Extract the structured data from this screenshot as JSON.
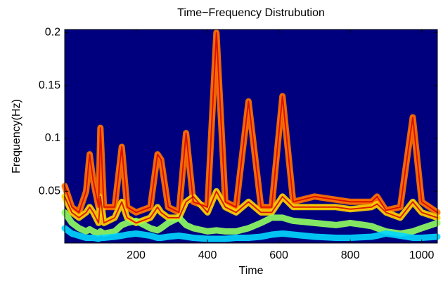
{
  "chart_data": {
    "type": "spectrogram",
    "title": "Time−Frequency Distrubution",
    "x_label": "Time",
    "y_label": "Frequency(Hz)",
    "background": "#00007f",
    "xlim": [
      0,
      1044
    ],
    "ylim": [
      0.001,
      0.203
    ],
    "xticks": [
      200,
      400,
      600,
      800,
      1000
    ],
    "yticks": [
      0.05,
      0.1,
      0.15,
      0.2
    ],
    "x": [
      0,
      20,
      40,
      60,
      70,
      80,
      95,
      100,
      110,
      140,
      160,
      175,
      200,
      240,
      260,
      270,
      290,
      320,
      340,
      360,
      400,
      425,
      450,
      480,
      515,
      550,
      580,
      610,
      640,
      700,
      760,
      800,
      860,
      875,
      900,
      940,
      975,
      1000,
      1044
    ],
    "series": [
      {
        "color": "#ff7000",
        "values": [
          0.055,
          0.035,
          0.03,
          0.05,
          0.085,
          0.06,
          0.035,
          0.11,
          0.035,
          0.035,
          0.092,
          0.035,
          0.03,
          0.035,
          0.085,
          0.08,
          0.035,
          0.03,
          0.105,
          0.04,
          0.035,
          0.2,
          0.04,
          0.035,
          0.135,
          0.035,
          0.035,
          0.14,
          0.04,
          0.045,
          0.042,
          0.04,
          0.04,
          0.045,
          0.032,
          0.035,
          0.12,
          0.04,
          0.03
        ]
      },
      {
        "color": "#ffd000",
        "values": [
          0.045,
          0.03,
          0.025,
          0.03,
          0.035,
          0.03,
          0.02,
          0.045,
          0.02,
          0.025,
          0.04,
          0.025,
          0.02,
          0.025,
          0.035,
          0.03,
          0.025,
          0.025,
          0.04,
          0.045,
          0.03,
          0.05,
          0.035,
          0.03,
          0.04,
          0.03,
          0.03,
          0.045,
          0.035,
          0.035,
          0.035,
          0.033,
          0.035,
          0.038,
          0.03,
          0.025,
          0.04,
          0.03,
          0.025
        ]
      },
      {
        "color": "#90ff60",
        "values": [
          0.03,
          0.02,
          0.015,
          0.012,
          0.014,
          0.012,
          0.01,
          0.012,
          0.01,
          0.012,
          0.018,
          0.02,
          0.022,
          0.015,
          0.013,
          0.015,
          0.02,
          0.025,
          0.018,
          0.015,
          0.012,
          0.013,
          0.012,
          0.012,
          0.015,
          0.02,
          0.025,
          0.025,
          0.022,
          0.02,
          0.018,
          0.02,
          0.017,
          0.015,
          0.012,
          0.01,
          0.012,
          0.015,
          0.02
        ]
      },
      {
        "color": "#00d8ff",
        "values": [
          0.015,
          0.01,
          0.008,
          0.006,
          0.006,
          0.006,
          0.005,
          0.006,
          0.006,
          0.007,
          0.008,
          0.009,
          0.01,
          0.008,
          0.006,
          0.006,
          0.007,
          0.008,
          0.007,
          0.006,
          0.005,
          0.005,
          0.005,
          0.006,
          0.006,
          0.007,
          0.009,
          0.01,
          0.009,
          0.007,
          0.006,
          0.006,
          0.007,
          0.008,
          0.01,
          0.008,
          0.006,
          0.006,
          0.007
        ]
      }
    ]
  }
}
